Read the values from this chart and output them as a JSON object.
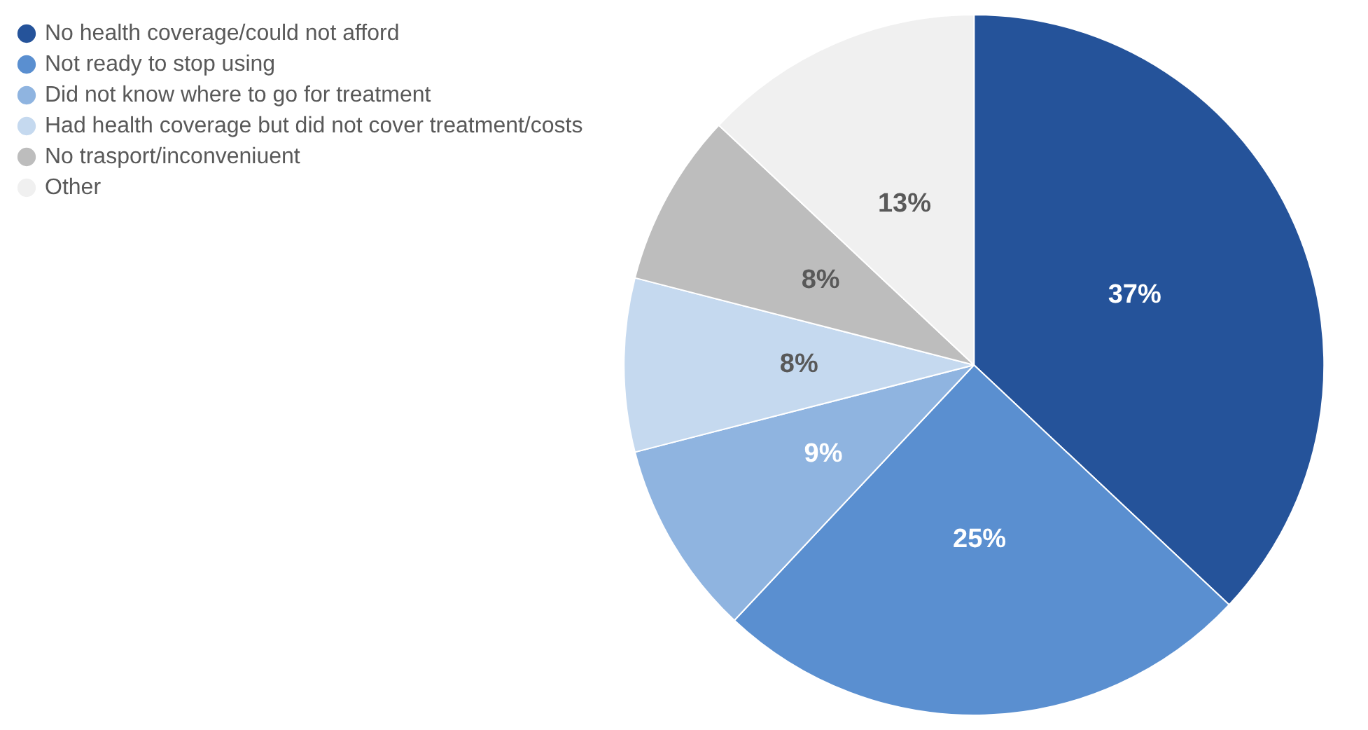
{
  "chart_data": {
    "type": "pie",
    "categories": [
      "No health coverage/could not afford",
      "Not ready to stop using",
      "Did not know where to go for treatment",
      "Had health coverage but did not cover treatment/costs",
      "No trasport/inconveniuent",
      "Other"
    ],
    "values": [
      37,
      25,
      9,
      8,
      8,
      13
    ],
    "colors": [
      "#25539a",
      "#5a8fd0",
      "#8fb4e0",
      "#c5d9ef",
      "#bdbdbd",
      "#f0f0f0"
    ],
    "value_labels": [
      "37%",
      "25%",
      "9%",
      "8%",
      "8%",
      "13%"
    ],
    "legend": "top left"
  }
}
